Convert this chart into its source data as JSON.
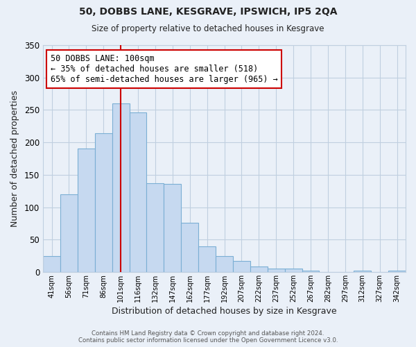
{
  "title": "50, DOBBS LANE, KESGRAVE, IPSWICH, IP5 2QA",
  "subtitle": "Size of property relative to detached houses in Kesgrave",
  "xlabel": "Distribution of detached houses by size in Kesgrave",
  "ylabel": "Number of detached properties",
  "bar_labels": [
    "41sqm",
    "56sqm",
    "71sqm",
    "86sqm",
    "101sqm",
    "116sqm",
    "132sqm",
    "147sqm",
    "162sqm",
    "177sqm",
    "192sqm",
    "207sqm",
    "222sqm",
    "237sqm",
    "252sqm",
    "267sqm",
    "282sqm",
    "297sqm",
    "312sqm",
    "327sqm",
    "342sqm"
  ],
  "bar_values": [
    24,
    120,
    191,
    214,
    260,
    246,
    137,
    136,
    76,
    40,
    25,
    17,
    8,
    5,
    5,
    2,
    0,
    0,
    2,
    0,
    2
  ],
  "bar_color": "#c6d9f0",
  "bar_edge_color": "#7bafd4",
  "vline_x_index": 4,
  "vline_color": "#cc0000",
  "annotation_text": "50 DOBBS LANE: 100sqm\n← 35% of detached houses are smaller (518)\n65% of semi-detached houses are larger (965) →",
  "annotation_box_color": "#ffffff",
  "annotation_box_edge": "#cc0000",
  "ylim": [
    0,
    350
  ],
  "yticks": [
    0,
    50,
    100,
    150,
    200,
    250,
    300,
    350
  ],
  "footer_text": "Contains HM Land Registry data © Crown copyright and database right 2024.\nContains public sector information licensed under the Open Government Licence v3.0.",
  "bg_color": "#eaf0f8",
  "plot_bg_color": "#eaf0f8",
  "grid_color": "#c0cfe0"
}
